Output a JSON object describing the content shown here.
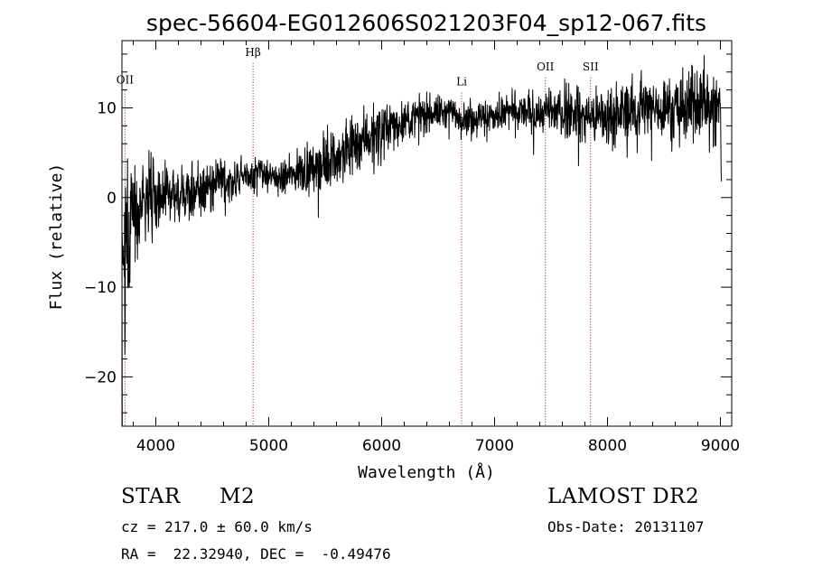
{
  "chart_data": {
    "type": "line",
    "title": "spec-56604-EG012606S021203F04_sp12-067.fits",
    "xlabel": "Wavelength (Å)",
    "ylabel": "Flux (relative)",
    "xlim": [
      3700,
      9100
    ],
    "ylim": [
      -25.5,
      17.5
    ],
    "xticks": [
      4000,
      5000,
      6000,
      7000,
      8000,
      9000
    ],
    "yticks": [
      -20,
      -10,
      0,
      10
    ],
    "grid": false,
    "series": [
      {
        "x": [
          3700,
          3720,
          3740,
          3760,
          3780,
          3800,
          3850,
          3900,
          3950,
          4000,
          4100,
          4200,
          4300,
          4400,
          4500,
          4600,
          4700,
          4800,
          4900,
          5000,
          5100,
          5200,
          5300,
          5400,
          5500,
          5600,
          5700,
          5800,
          5900,
          6000,
          6100,
          6200,
          6300,
          6400,
          6500,
          6600,
          6700,
          6800,
          6900,
          7000,
          7100,
          7200,
          7300,
          7400,
          7500,
          7600,
          7700,
          7800,
          7900,
          8000,
          8100,
          8200,
          8300,
          8400,
          8500,
          8600,
          8700,
          8800,
          8850,
          8900,
          8950,
          9000,
          9010
        ],
        "y": [
          -4,
          -7,
          -3,
          -5,
          -2,
          -1,
          -1,
          -0.5,
          0,
          0,
          0.5,
          0.5,
          0.5,
          1,
          1.5,
          1.8,
          2,
          2.5,
          3,
          2.5,
          2,
          2.5,
          3,
          3.5,
          4,
          4.5,
          5.5,
          6.5,
          7,
          7.5,
          8,
          8.5,
          9,
          9.5,
          9.5,
          9.5,
          9,
          9,
          9,
          9,
          9.5,
          9.5,
          9.5,
          9.5,
          9.5,
          9.5,
          9.5,
          9,
          9,
          9,
          9.5,
          10,
          10,
          10,
          10,
          10,
          10,
          10.5,
          11,
          10,
          10,
          10,
          1
        ],
        "noise": [
          1.5,
          8,
          10,
          6,
          5,
          4,
          3,
          3,
          2.5,
          2.5,
          2,
          2,
          2,
          1.8,
          1.5,
          1.5,
          1.3,
          1.2,
          1.2,
          1.2,
          1.2,
          1.3,
          1.5,
          1.6,
          1.8,
          2,
          2,
          2,
          2,
          1.8,
          1.6,
          1.4,
          1.3,
          1.2,
          1.2,
          1.2,
          1.2,
          1.2,
          1.2,
          1.2,
          1.2,
          1.3,
          1.4,
          1.4,
          1.5,
          1.6,
          1.8,
          1.8,
          1.8,
          1.9,
          2,
          2,
          2,
          2.1,
          2.1,
          2.2,
          2.3,
          2.4,
          2.6,
          2.8,
          3,
          3,
          0
        ]
      }
    ],
    "lines": [
      {
        "label": "OII",
        "x": 3727,
        "ly": 12.7
      },
      {
        "label": "Hβ",
        "x": 4861,
        "ly": 15.8
      },
      {
        "label": "Li",
        "x": 6708,
        "ly": 12.5
      },
      {
        "label": "OII",
        "x": 7450,
        "ly": 14.2
      },
      {
        "label": "SII",
        "x": 7850,
        "ly": 14.2
      }
    ]
  },
  "info": {
    "object_class": "STAR",
    "subclass": "M2",
    "survey": "LAMOST DR2",
    "redshift": "cz = 217.0 ± 60.0 km/s",
    "obs_date": "Obs-Date: 20131107",
    "coords": "RA =  22.32940, DEC =  -0.49476"
  },
  "colors": {
    "line": "#000000",
    "marker": "#8b1a1a",
    "axis": "#000000"
  }
}
